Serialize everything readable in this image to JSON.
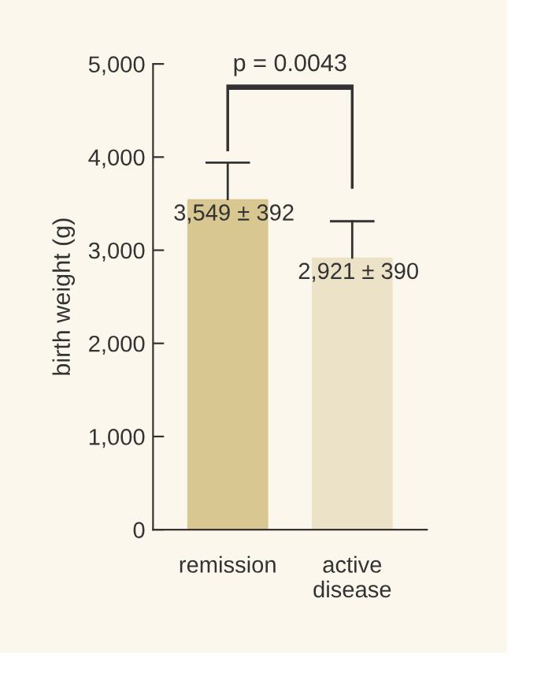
{
  "chart_data": {
    "type": "bar",
    "ylabel": "birth weight (g)",
    "categories": [
      "remission",
      "active\ndisease"
    ],
    "values": [
      3549,
      2921
    ],
    "colors": [
      "#d9c791",
      "#ebe2c7"
    ],
    "errors": [
      [
        3549,
        3941
      ],
      [
        2921,
        3311
      ]
    ],
    "value_labels": [
      "3,549 ± 392",
      "2,921 ± 390"
    ],
    "ylim": [
      0,
      5000
    ],
    "yticks": [
      0,
      {
        "value": 1000,
        "label": "1,000"
      },
      {
        "value": 2000,
        "label": "2,000"
      },
      {
        "value": 3000,
        "label": "3,000"
      },
      {
        "value": 4000,
        "label": "4,000"
      },
      {
        "value": 5000,
        "label": "5,000"
      }
    ],
    "annotations": [
      "p = 0.0043"
    ],
    "grid": false,
    "legend": false
  }
}
